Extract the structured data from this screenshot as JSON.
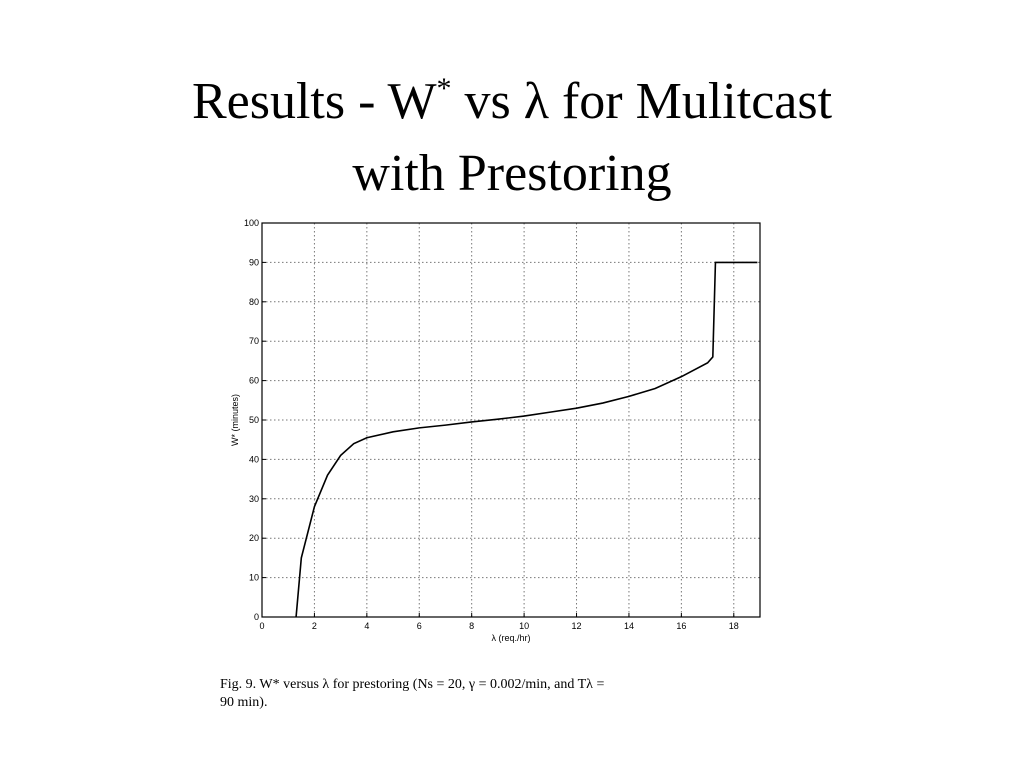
{
  "slide_title": {
    "start": "Results - W",
    "sup": "*",
    "end": " vs λ for Mulitcast",
    "line2": "with Prestoring"
  },
  "chart_data": {
    "type": "line",
    "x": [
      1.3,
      1.5,
      2,
      2.5,
      3,
      3.5,
      4,
      5,
      6,
      7,
      8,
      9,
      10,
      11,
      12,
      13,
      14,
      15,
      16,
      17,
      17.2,
      17.3,
      18.9
    ],
    "values": [
      0,
      15,
      28,
      36,
      41,
      44,
      45.5,
      47,
      48,
      48.7,
      49.5,
      50.2,
      51,
      52,
      53,
      54.3,
      56,
      58,
      61,
      64.5,
      66,
      90,
      90
    ],
    "color": "#000000",
    "xlim": [
      0,
      19
    ],
    "xticks": [
      0,
      2,
      4,
      6,
      8,
      10,
      12,
      14,
      16,
      18
    ],
    "ylim": [
      0,
      100
    ],
    "yticks": [
      0,
      10,
      20,
      30,
      40,
      50,
      60,
      70,
      80,
      90,
      100
    ],
    "grid": true,
    "xlabel": "λ (req./hr)",
    "ylabel": "W* (minutes)",
    "caption": [
      "Fig. 9.   W* versus λ for prestoring (Ns = 20, γ = 0.002/min, and Tλ =",
      "90 min)."
    ]
  }
}
